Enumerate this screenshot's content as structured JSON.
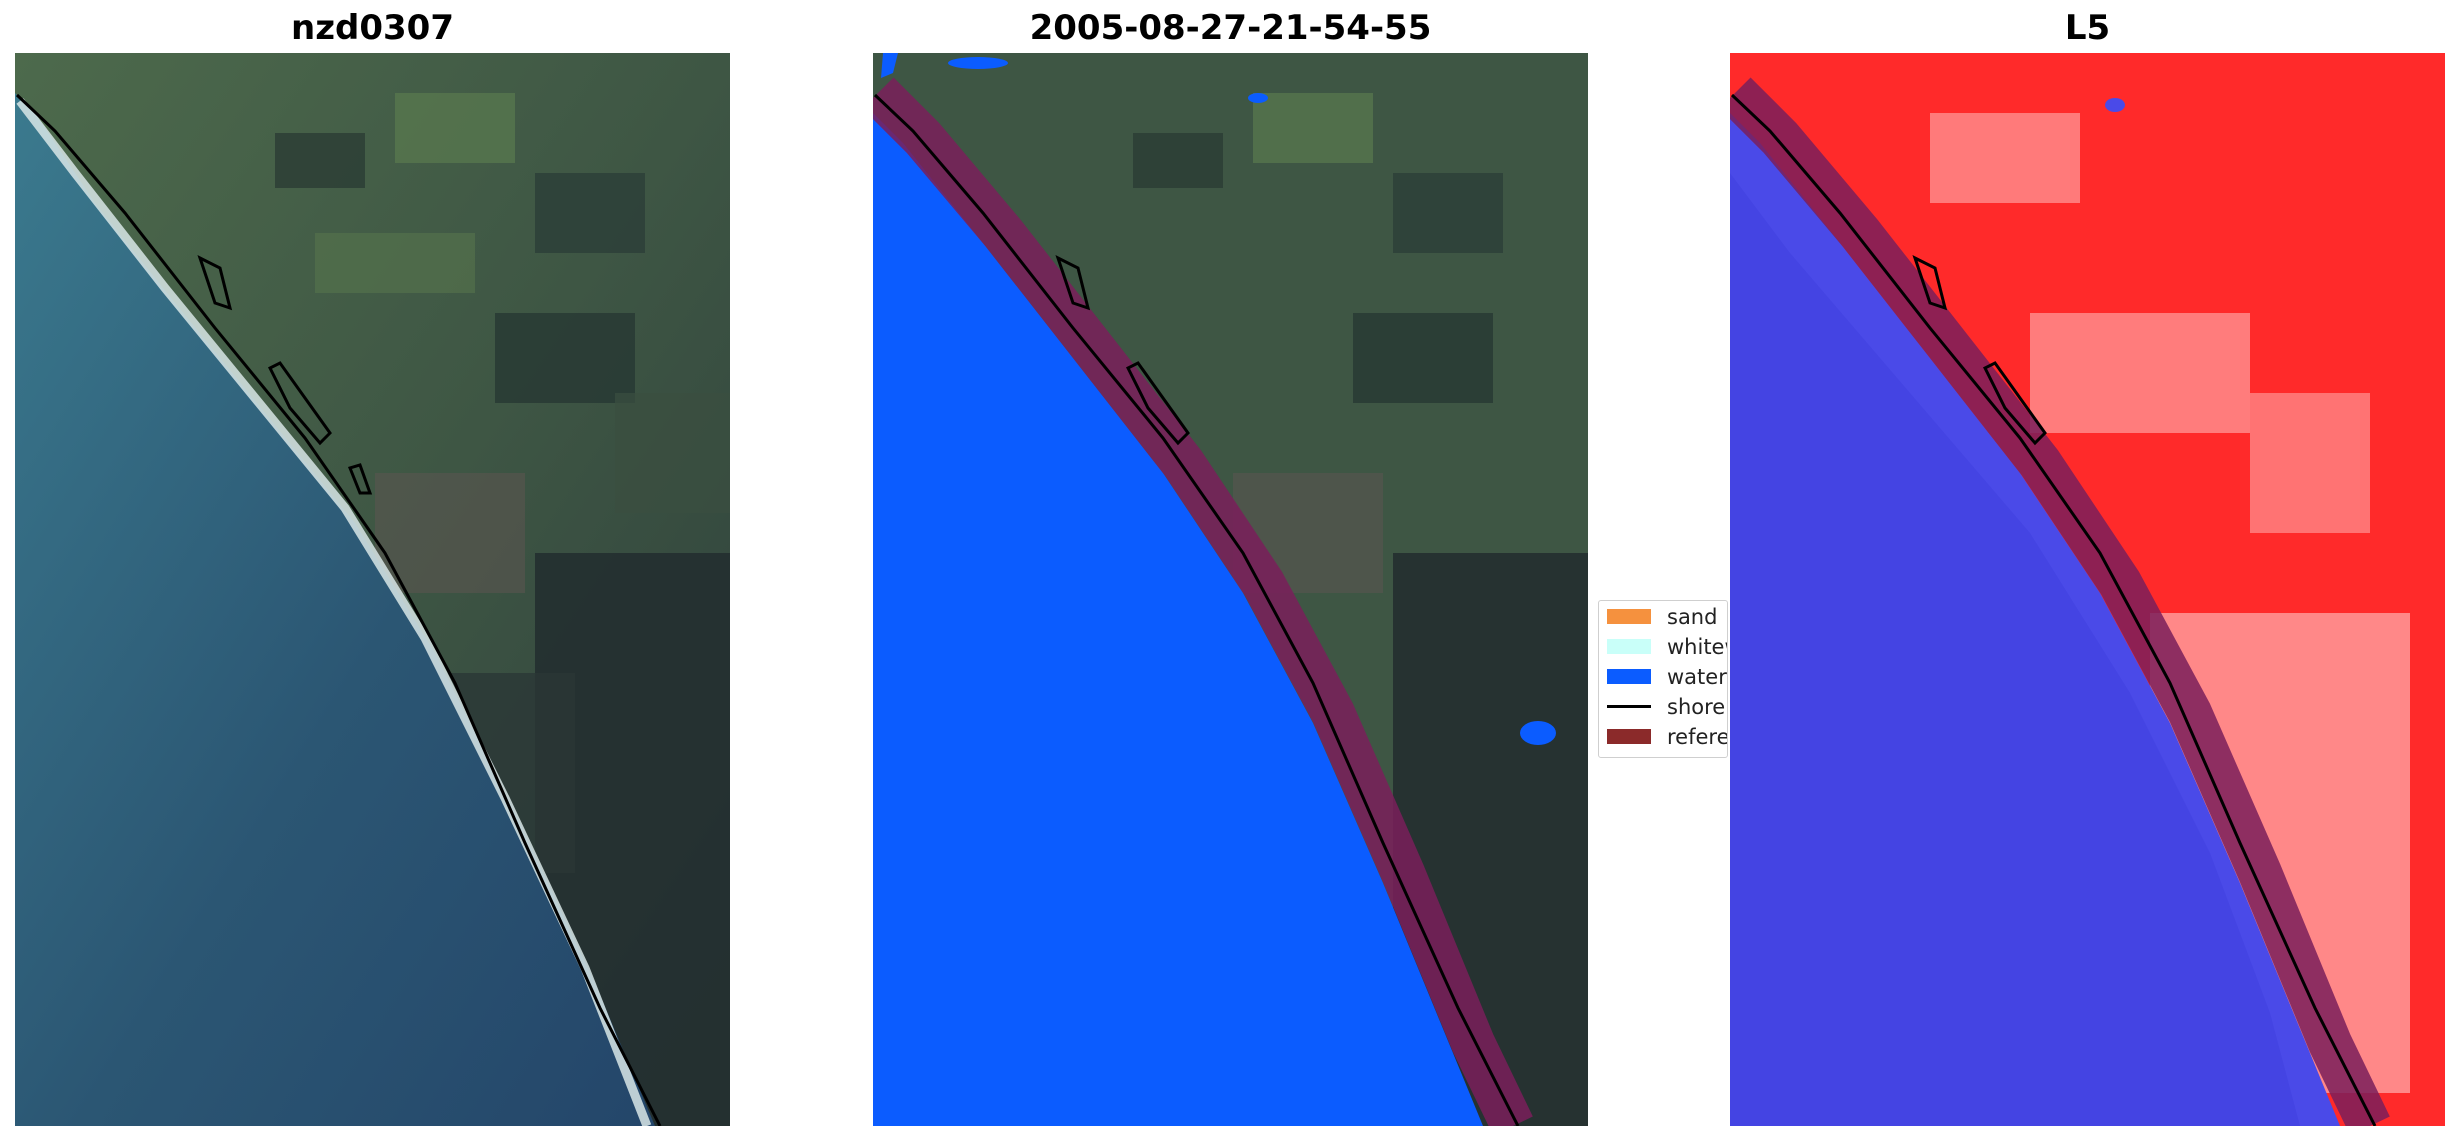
{
  "panels": [
    {
      "title": "nzd0307"
    },
    {
      "title": "2005-08-27-21-54-55"
    },
    {
      "title": "L5"
    }
  ],
  "legend": {
    "items": [
      {
        "label": "sand",
        "color": "#f5913e",
        "kind": "patch"
      },
      {
        "label": "whitewater",
        "color": "#c9fff9",
        "kind": "patch"
      },
      {
        "label": "water",
        "color": "#0b5cff",
        "kind": "patch"
      },
      {
        "label": "shoreline",
        "color": "#000000",
        "kind": "line"
      },
      {
        "label": "reference",
        "color": "#8b2a2a",
        "kind": "patch"
      }
    ]
  },
  "colors": {
    "water_class": "#0b5cff",
    "land_rgb": "#3f5a4a",
    "ocean_rgb": "#2f5e7a",
    "reference_band": "#7a1f5a",
    "index_land": "#ff2a2a",
    "index_water": "#4a4ae8"
  }
}
